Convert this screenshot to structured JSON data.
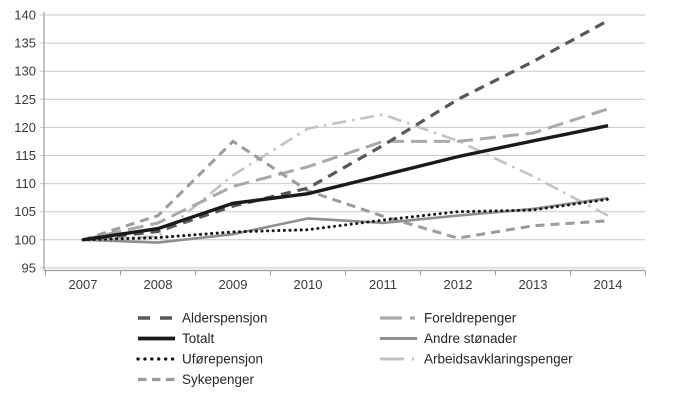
{
  "chart_data": {
    "type": "line",
    "title": "",
    "x_labels": [
      "2007",
      "2008",
      "2009",
      "2010",
      "2011",
      "2012",
      "2013",
      "2014"
    ],
    "y_ticks": [
      140,
      135,
      130,
      125,
      120,
      115,
      110,
      105,
      100,
      95
    ],
    "ylim": [
      95,
      140
    ],
    "grid": true,
    "legend_position": "bottom-two-columns",
    "series": [
      {
        "name": "Arbeidsavklaringspenger",
        "values": [
          100,
          100.6,
          111.5,
          119.8,
          122.3,
          117.6,
          111.3,
          104.3
        ],
        "color": "#c3c3c3",
        "dash": "14 6 2.5 6",
        "legend_dash": "24 8 2 8",
        "width": 2.6
      },
      {
        "name": "Foreldrepenger",
        "values": [
          100,
          103,
          109.5,
          113,
          117.5,
          117.5,
          119,
          123.3
        ],
        "color": "#a9a9a9",
        "dash": "16 7",
        "legend_dash": "22 8 5 8",
        "width": 3
      },
      {
        "name": "Sykepenger",
        "values": [
          100,
          104.3,
          117.5,
          108.7,
          104.2,
          100.3,
          102.5,
          103.4
        ],
        "color": "#9b9b9b",
        "dash": "9 6",
        "legend_dash": "8.5 5.5",
        "width": 3
      },
      {
        "name": "Andre stønader",
        "values": [
          100,
          99.5,
          101,
          103.8,
          103,
          104.3,
          105.5,
          107.4
        ],
        "color": "#8f8f8f",
        "dash": "",
        "width": 2.6
      },
      {
        "name": "Uførepensjon",
        "values": [
          100,
          100.4,
          101.4,
          101.8,
          103.5,
          105,
          105.3,
          107.2
        ],
        "color": "#161616",
        "dash": "0.1 5.5",
        "legend_dash": "0.1 6.8",
        "width": 3,
        "cap": "round"
      },
      {
        "name": "Alderspensjon",
        "values": [
          100,
          101.5,
          106,
          109.2,
          116.8,
          125,
          131.7,
          139
        ],
        "color": "#585858",
        "dash": "10 7",
        "legend_dash": "12 10",
        "width": 3.2
      },
      {
        "name": "Totalt",
        "values": [
          100,
          102,
          106.5,
          108.2,
          111.5,
          114.8,
          117.6,
          120.3
        ],
        "color": "#1a1a1a",
        "dash": "",
        "width": 3.4
      }
    ],
    "legend_columns": [
      [
        "Alderspensjon",
        "Totalt",
        "Uførepensjon",
        "Sykepenger"
      ],
      [
        "Foreldrepenger",
        "Andre stønader",
        "Arbeidsavklaringspenger"
      ]
    ]
  },
  "colors": {
    "background": "#ffffff",
    "grid": "#c9c9c9",
    "axis": "#9e9e9e",
    "tick_text": "#3a3a3a",
    "legend_text": "#262626"
  }
}
